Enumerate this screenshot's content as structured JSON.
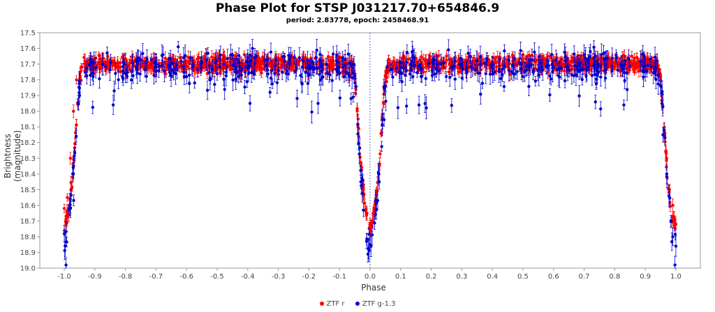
{
  "chart_data": {
    "type": "scatter",
    "title": "Phase Plot for STSP J031217.70+654846.9",
    "subtitle": "period: 2.83778, epoch: 2458468.91",
    "xlabel": "Phase",
    "ylabel": "Brightness (magnitude)",
    "xlim": [
      -1.08,
      1.08
    ],
    "ylim": [
      17.5,
      19.0
    ],
    "y_inverted": true,
    "x_ticks": [
      "-1.0",
      "-0.9",
      "-0.8",
      "-0.7",
      "-0.6",
      "-0.5",
      "-0.4",
      "-0.3",
      "-0.2",
      "-0.1",
      "0.0",
      "0.1",
      "0.2",
      "0.3",
      "0.4",
      "0.5",
      "0.6",
      "0.7",
      "0.8",
      "0.9",
      "1.0"
    ],
    "y_ticks": [
      "17.5",
      "17.6",
      "17.7",
      "17.8",
      "17.9",
      "18.0",
      "18.1",
      "18.2",
      "18.3",
      "18.4",
      "18.5",
      "18.6",
      "18.7",
      "18.8",
      "18.9",
      "19.0"
    ],
    "reference_line_x": 0.0,
    "legend_placement": "bottom",
    "series": [
      {
        "name": "ZTF r",
        "color": "#ff0000",
        "curve": {
          "plateau": 17.7,
          "scatter": 0.035,
          "error": 0.03,
          "profile": [
            [
              0.0,
              18.75
            ],
            [
              0.01,
              18.68
            ],
            [
              0.02,
              18.55
            ],
            [
              0.03,
              18.35
            ],
            [
              0.04,
              18.05
            ],
            [
              0.05,
              17.78
            ],
            [
              0.06,
              17.71
            ],
            [
              0.1,
              17.7
            ]
          ]
        },
        "points": [
          [
            -1.0,
            18.62
          ],
          [
            -0.99,
            18.55
          ],
          [
            -0.98,
            18.3
          ],
          [
            -0.97,
            18.0
          ],
          [
            -0.96,
            17.8
          ],
          [
            -0.9,
            17.69
          ],
          [
            -0.8,
            17.68
          ],
          [
            -0.7,
            17.66
          ],
          [
            -0.6,
            17.68
          ],
          [
            -0.5,
            17.72
          ],
          [
            -0.4,
            17.68
          ],
          [
            -0.3,
            17.66
          ],
          [
            -0.2,
            17.7
          ],
          [
            -0.1,
            17.72
          ],
          [
            -0.05,
            17.78
          ],
          [
            -0.03,
            18.35
          ],
          [
            -0.01,
            18.65
          ],
          [
            0.0,
            18.72
          ],
          [
            0.01,
            18.65
          ],
          [
            0.03,
            18.35
          ],
          [
            0.05,
            17.78
          ],
          [
            0.1,
            17.7
          ],
          [
            0.2,
            17.69
          ],
          [
            0.3,
            17.68
          ],
          [
            0.4,
            17.72
          ],
          [
            0.5,
            17.7
          ],
          [
            0.6,
            17.68
          ],
          [
            0.7,
            17.66
          ],
          [
            0.8,
            17.69
          ],
          [
            0.9,
            17.7
          ],
          [
            0.95,
            17.8
          ],
          [
            0.97,
            18.3
          ],
          [
            0.99,
            18.6
          ],
          [
            1.0,
            18.72
          ]
        ]
      },
      {
        "name": "ZTF g-1.3",
        "color": "#0000cc",
        "curve": {
          "plateau": 17.72,
          "scatter": 0.07,
          "error": 0.05,
          "profile": [
            [
              0.0,
              18.85
            ],
            [
              0.01,
              18.78
            ],
            [
              0.02,
              18.6
            ],
            [
              0.03,
              18.38
            ],
            [
              0.04,
              18.1
            ],
            [
              0.05,
              17.82
            ],
            [
              0.06,
              17.73
            ],
            [
              0.1,
              17.72
            ]
          ]
        },
        "points": [
          [
            -1.0,
            18.78
          ],
          [
            -0.98,
            18.62
          ],
          [
            -0.97,
            18.35
          ],
          [
            -0.95,
            17.9
          ],
          [
            -0.84,
            17.96
          ],
          [
            -0.8,
            17.76
          ],
          [
            -0.7,
            17.72
          ],
          [
            -0.6,
            17.78
          ],
          [
            -0.5,
            17.76
          ],
          [
            -0.4,
            17.66
          ],
          [
            -0.3,
            17.74
          ],
          [
            -0.17,
            17.95
          ],
          [
            -0.1,
            17.76
          ],
          [
            -0.03,
            18.45
          ],
          [
            0.0,
            18.85
          ],
          [
            0.03,
            18.45
          ],
          [
            0.16,
            17.96
          ],
          [
            0.3,
            17.72
          ],
          [
            0.4,
            17.7
          ],
          [
            0.5,
            17.78
          ],
          [
            0.6,
            17.72
          ],
          [
            0.7,
            17.64
          ],
          [
            0.83,
            17.96
          ],
          [
            0.9,
            17.74
          ],
          [
            0.97,
            18.4
          ],
          [
            0.99,
            18.8
          ],
          [
            1.0,
            18.86
          ]
        ]
      }
    ]
  }
}
